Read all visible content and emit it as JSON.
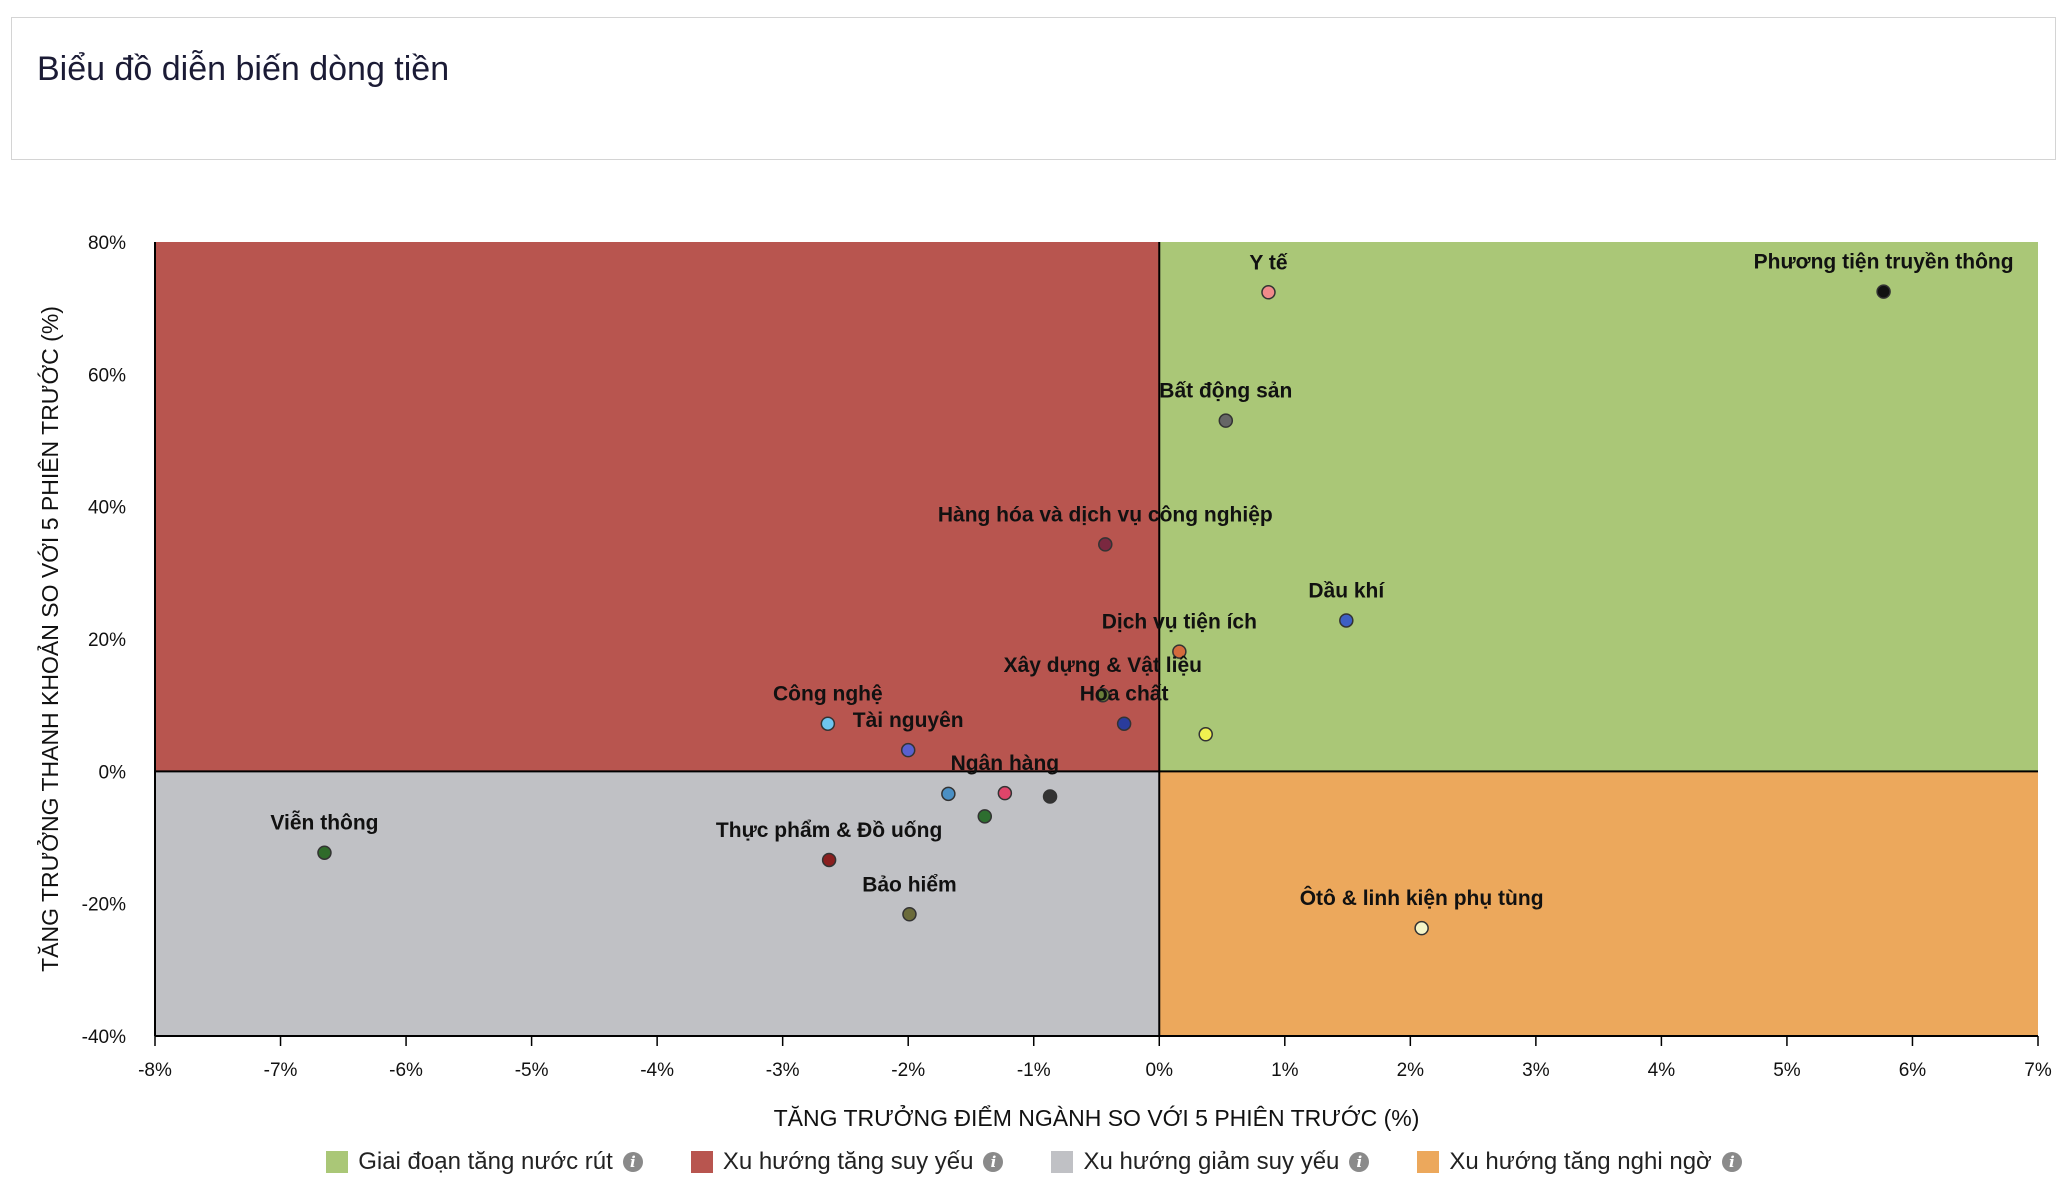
{
  "header": {
    "title": "Biểu đồ diễn biến dòng tiền"
  },
  "chart_data": {
    "type": "scatter",
    "title": "Biểu đồ diễn biến dòng tiền",
    "xlabel": "TĂNG TRƯỞNG ĐIỂM NGÀNH SO VỚI 5 PHIÊN TRƯỚC (%)",
    "ylabel": "TĂNG TRƯỞNG THANH KHOẢN SO VỚI 5 PHIÊN TRƯỚC (%)",
    "xlim": [
      -8,
      7
    ],
    "ylim": [
      -40,
      80
    ],
    "x_ticks": [
      -8,
      -7,
      -6,
      -5,
      -4,
      -3,
      -2,
      -1,
      0,
      1,
      2,
      3,
      4,
      5,
      6,
      7
    ],
    "y_ticks": [
      -40,
      -20,
      0,
      20,
      40,
      60,
      80
    ],
    "x_tick_labels": [
      "-8%",
      "-7%",
      "-6%",
      "-5%",
      "-4%",
      "-3%",
      "-2%",
      "-1%",
      "0%",
      "1%",
      "2%",
      "3%",
      "4%",
      "5%",
      "6%",
      "7%"
    ],
    "y_tick_labels": [
      "-40%",
      "-20%",
      "0%",
      "20%",
      "40%",
      "60%",
      "80%"
    ],
    "quadrants": [
      {
        "name": "Giai đoạn tăng nước rút",
        "x": [
          0,
          7
        ],
        "y": [
          0,
          80
        ],
        "color": "#aac777"
      },
      {
        "name": "Xu hướng tăng suy yếu",
        "x": [
          -8,
          0
        ],
        "y": [
          0,
          80
        ],
        "color": "#b8554f"
      },
      {
        "name": "Xu hướng giảm suy yếu",
        "x": [
          -8,
          0
        ],
        "y": [
          -40,
          0
        ],
        "color": "#c0c1c5"
      },
      {
        "name": "Xu hướng tăng nghi ngờ",
        "x": [
          0,
          7
        ],
        "y": [
          -40,
          0
        ],
        "color": "#eca85c"
      }
    ],
    "points": [
      {
        "label": "Phương tiện truyền thông",
        "x": 5.77,
        "y": 72.5,
        "color": "#111111"
      },
      {
        "label": "Y tế",
        "x": 0.87,
        "y": 72.4,
        "color": "#f08a8a"
      },
      {
        "label": "Bất động sản",
        "x": 0.53,
        "y": 53.0,
        "color": "#666666"
      },
      {
        "label": "Hàng hóa và dịch vụ công nghiệp",
        "x": -0.43,
        "y": 34.3,
        "color": "#7a2840"
      },
      {
        "label": "Dầu khí",
        "x": 1.49,
        "y": 22.8,
        "color": "#3d5fc4"
      },
      {
        "label": "Dịch vụ tiện ích",
        "x": 0.16,
        "y": 18.1,
        "color": "#d46b3d"
      },
      {
        "label": "Xây dựng & Vật liệu",
        "x": -0.45,
        "y": 11.5,
        "color": "#6a7f3a"
      },
      {
        "label": "Hóa chất",
        "x": -0.28,
        "y": 7.2,
        "color": "#2a3c9c"
      },
      {
        "label": "",
        "x": 0.37,
        "y": 5.6,
        "color": "#f0f050"
      },
      {
        "label": "Công nghệ",
        "x": -2.64,
        "y": 7.2,
        "color": "#6ec5ef"
      },
      {
        "label": "Tài nguyên",
        "x": -2.0,
        "y": 3.2,
        "color": "#5960ce"
      },
      {
        "label": "Ngân hàng",
        "x": -1.23,
        "y": -3.3,
        "color": "#e0456a"
      },
      {
        "label": "",
        "x": -1.68,
        "y": -3.4,
        "color": "#4a8fc4"
      },
      {
        "label": "",
        "x": -0.87,
        "y": -3.8,
        "color": "#333333"
      },
      {
        "label": "",
        "x": -1.39,
        "y": -6.8,
        "color": "#2d6e2f"
      },
      {
        "label": "Thực phẩm & Đồ uống",
        "x": -2.63,
        "y": -13.4,
        "color": "#8a1f1f"
      },
      {
        "label": "Viễn thông",
        "x": -6.65,
        "y": -12.3,
        "color": "#2f6b2a"
      },
      {
        "label": "Bảo hiểm",
        "x": -1.99,
        "y": -21.6,
        "color": "#6b6b3a"
      },
      {
        "label": "Ôtô & linh kiện phụ tùng",
        "x": 2.09,
        "y": -23.7,
        "color": "#f5f5c8"
      }
    ],
    "grid": false,
    "legend_position": "bottom"
  },
  "legend": {
    "items": [
      {
        "label": "Giai đoạn tăng nước rút",
        "color": "#aac777"
      },
      {
        "label": "Xu hướng tăng suy yếu",
        "color": "#b8554f"
      },
      {
        "label": "Xu hướng giảm suy yếu",
        "color": "#c0c1c5"
      },
      {
        "label": "Xu hướng tăng nghi ngờ",
        "color": "#eca85c"
      }
    ],
    "info_icon": "info-icon"
  }
}
